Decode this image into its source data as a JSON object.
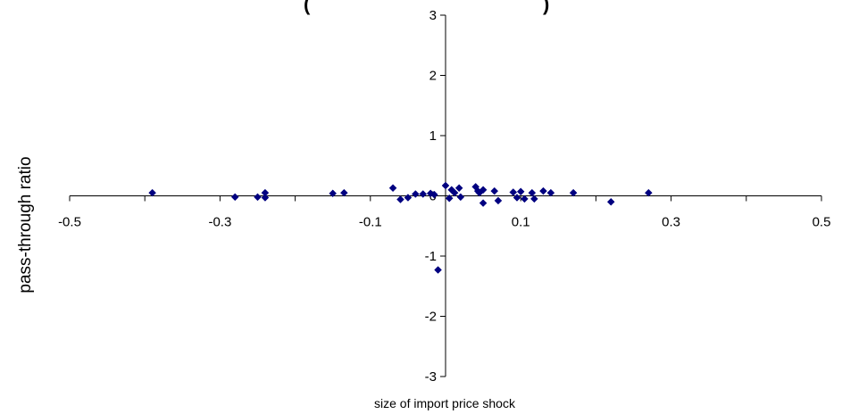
{
  "chart_data": {
    "type": "scatter",
    "title": "(",
    "title_right": ")",
    "xlabel": "size of import price shock",
    "ylabel": "pass-through ratio",
    "xlim": [
      -0.5,
      0.5
    ],
    "ylim": [
      -3,
      3
    ],
    "xticks": [
      "-0.5",
      "-0.3",
      "-0.1",
      "0.1",
      "0.3",
      "0.5"
    ],
    "yticks": [
      "3",
      "2",
      "1",
      "0",
      "-1",
      "-2",
      "-3"
    ],
    "x_tick_values": [
      -0.5,
      -0.3,
      -0.1,
      0.1,
      0.3,
      0.5
    ],
    "y_tick_values": [
      3,
      2,
      1,
      0,
      -1,
      -2,
      -3
    ],
    "grid": false,
    "marker_color": "#000080",
    "points": [
      {
        "x": -0.39,
        "y": 0.05
      },
      {
        "x": -0.28,
        "y": -0.02
      },
      {
        "x": -0.25,
        "y": -0.02
      },
      {
        "x": -0.24,
        "y": 0.05
      },
      {
        "x": -0.24,
        "y": -0.03
      },
      {
        "x": -0.15,
        "y": 0.04
      },
      {
        "x": -0.135,
        "y": 0.05
      },
      {
        "x": -0.07,
        "y": 0.13
      },
      {
        "x": -0.06,
        "y": -0.06
      },
      {
        "x": -0.05,
        "y": -0.03
      },
      {
        "x": -0.04,
        "y": 0.03
      },
      {
        "x": -0.03,
        "y": 0.03
      },
      {
        "x": -0.02,
        "y": 0.04
      },
      {
        "x": -0.015,
        "y": 0.02
      },
      {
        "x": -0.01,
        "y": -1.23
      },
      {
        "x": 0.0,
        "y": 0.17
      },
      {
        "x": 0.005,
        "y": -0.04
      },
      {
        "x": 0.008,
        "y": 0.1
      },
      {
        "x": 0.012,
        "y": 0.05
      },
      {
        "x": 0.018,
        "y": 0.13
      },
      {
        "x": 0.02,
        "y": -0.02
      },
      {
        "x": 0.04,
        "y": 0.15
      },
      {
        "x": 0.043,
        "y": 0.08
      },
      {
        "x": 0.045,
        "y": 0.05
      },
      {
        "x": 0.05,
        "y": 0.1
      },
      {
        "x": 0.05,
        "y": -0.12
      },
      {
        "x": 0.065,
        "y": 0.08
      },
      {
        "x": 0.07,
        "y": -0.08
      },
      {
        "x": 0.09,
        "y": 0.06
      },
      {
        "x": 0.095,
        "y": -0.03
      },
      {
        "x": 0.1,
        "y": 0.07
      },
      {
        "x": 0.105,
        "y": -0.05
      },
      {
        "x": 0.115,
        "y": 0.05
      },
      {
        "x": 0.118,
        "y": -0.05
      },
      {
        "x": 0.13,
        "y": 0.08
      },
      {
        "x": 0.14,
        "y": 0.05
      },
      {
        "x": 0.17,
        "y": 0.05
      },
      {
        "x": 0.22,
        "y": -0.1
      },
      {
        "x": 0.27,
        "y": 0.05
      }
    ]
  }
}
